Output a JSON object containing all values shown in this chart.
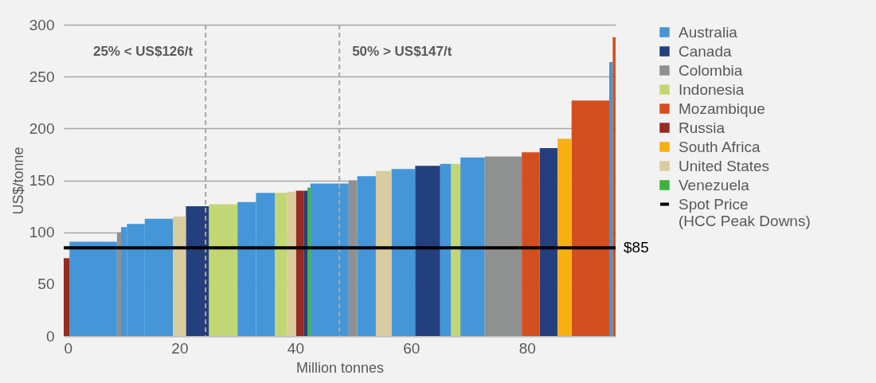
{
  "chart_data": {
    "type": "histogram",
    "xlabel": "Million tonnes",
    "ylabel": "US$/tonne",
    "bins": [
      0,
      1,
      9.2,
      9.9,
      10.9,
      14,
      18.9,
      21.1,
      25.1,
      30,
      33.2,
      36.5,
      38.6,
      40.1,
      41.5,
      42.1,
      42.6,
      49.2,
      50.7,
      53.9,
      56.6,
      60.7,
      65,
      66.9,
      68.5,
      72.7,
      79.1,
      82.2,
      85.3,
      87.7,
      94.2,
      94.8,
      95.3
    ],
    "series": [
      {
        "name": "Australia",
        "color": "#4496d8",
        "values": [
          null,
          91,
          null,
          105,
          108,
          113,
          null,
          null,
          null,
          129,
          138,
          null,
          null,
          null,
          null,
          null,
          147,
          null,
          154,
          null,
          161,
          null,
          166,
          null,
          172,
          null,
          null,
          null,
          null,
          null,
          264,
          null
        ]
      },
      {
        "name": "Canada",
        "color": "#243f7e",
        "values": [
          null,
          null,
          null,
          null,
          null,
          null,
          null,
          125,
          null,
          null,
          null,
          null,
          null,
          null,
          140,
          null,
          null,
          null,
          null,
          null,
          null,
          164,
          null,
          null,
          null,
          null,
          null,
          181,
          null,
          null,
          null,
          null
        ]
      },
      {
        "name": "Colombia",
        "color": "#8f9190",
        "values": [
          null,
          null,
          100,
          null,
          null,
          null,
          null,
          null,
          null,
          null,
          null,
          null,
          null,
          null,
          null,
          null,
          null,
          150,
          null,
          null,
          null,
          null,
          null,
          null,
          null,
          173,
          null,
          null,
          null,
          null,
          null,
          null
        ]
      },
      {
        "name": "Indonesia",
        "color": "#c3d674",
        "values": [
          null,
          null,
          null,
          null,
          null,
          null,
          null,
          null,
          127,
          null,
          null,
          138,
          null,
          null,
          null,
          null,
          null,
          null,
          null,
          null,
          null,
          null,
          null,
          166,
          null,
          null,
          null,
          null,
          null,
          null,
          null,
          null
        ]
      },
      {
        "name": "Mozambique",
        "color": "#d44f1f",
        "values": [
          null,
          null,
          null,
          null,
          null,
          null,
          null,
          null,
          null,
          null,
          null,
          null,
          null,
          null,
          null,
          null,
          null,
          null,
          null,
          null,
          null,
          null,
          null,
          null,
          null,
          null,
          177,
          null,
          null,
          227,
          null,
          288
        ]
      },
      {
        "name": "Russia",
        "color": "#952b23",
        "values": [
          75,
          null,
          null,
          null,
          null,
          null,
          null,
          null,
          null,
          null,
          null,
          null,
          null,
          140,
          null,
          null,
          null,
          null,
          null,
          null,
          null,
          null,
          null,
          null,
          null,
          null,
          null,
          null,
          null,
          null,
          null,
          null
        ]
      },
      {
        "name": "South Africa",
        "color": "#f8b011",
        "values": [
          null,
          null,
          null,
          null,
          null,
          null,
          null,
          null,
          null,
          null,
          null,
          null,
          null,
          null,
          null,
          null,
          null,
          null,
          null,
          null,
          null,
          null,
          null,
          null,
          null,
          null,
          null,
          null,
          190,
          null,
          null,
          null
        ]
      },
      {
        "name": "United States",
        "color": "#d9cc9f",
        "values": [
          null,
          null,
          null,
          null,
          null,
          null,
          115,
          null,
          null,
          null,
          null,
          null,
          139,
          null,
          null,
          null,
          null,
          null,
          null,
          159,
          null,
          null,
          null,
          null,
          null,
          null,
          null,
          null,
          null,
          null,
          null,
          null
        ]
      },
      {
        "name": "Venezuela",
        "color": "#3db23a",
        "values": [
          null,
          null,
          null,
          null,
          null,
          null,
          null,
          null,
          null,
          null,
          null,
          null,
          null,
          null,
          null,
          143,
          null,
          null,
          null,
          null,
          null,
          null,
          null,
          null,
          null,
          null,
          null,
          null,
          null,
          null,
          null,
          null
        ]
      },
      {
        "name": "Spot Price\n(HCC Peak Downs)",
        "type": "line",
        "color": "#000000",
        "x": [
          0,
          95.3
        ],
        "values": [
          85,
          85
        ]
      }
    ],
    "xlim": [
      0,
      95.3
    ],
    "xticks": [
      0,
      20,
      40,
      60,
      80
    ],
    "ylim": [
      0,
      300
    ],
    "yticks": [
      0,
      50,
      100,
      150,
      200,
      250,
      300
    ],
    "grid": "y",
    "legend": "right",
    "ref_lines": [
      {
        "axis": "x",
        "value": 24.5,
        "label": "25% < US$126/t",
        "color": "#a6a6a6",
        "line_style": "dashed"
      },
      {
        "axis": "x",
        "value": 47.6,
        "label": "50% > US$147/t",
        "color": "#a6a6a6",
        "line_style": "dashed"
      }
    ],
    "annotations": [
      {
        "text": "$85",
        "x": 95.3,
        "y": 85
      }
    ]
  }
}
